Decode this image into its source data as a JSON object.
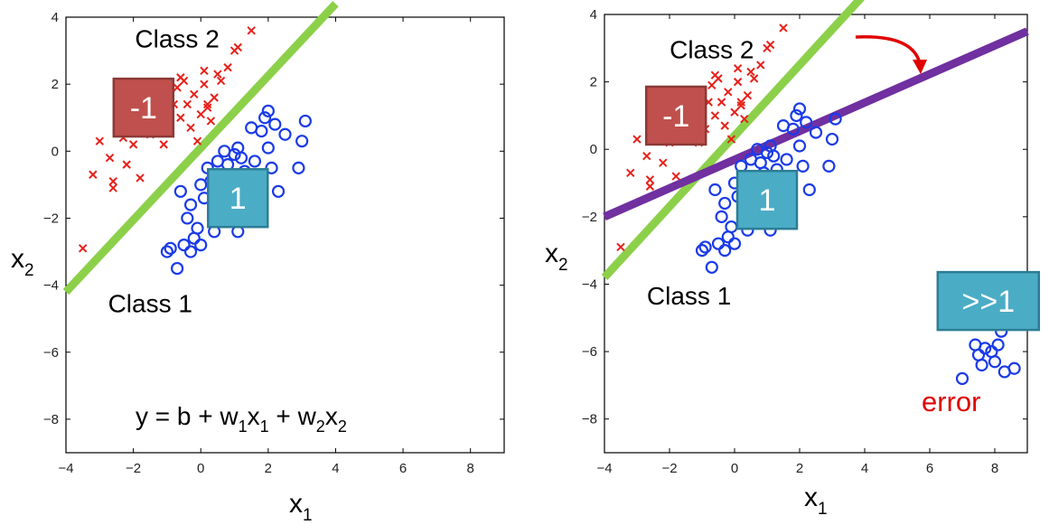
{
  "chart_data": [
    {
      "type": "scatter",
      "title": "",
      "xlabel": "x",
      "xlabel_sub": "1",
      "ylabel": "x",
      "ylabel_sub": "2",
      "xlim": [
        -4,
        9
      ],
      "ylim": [
        -9,
        4
      ],
      "xticks": [
        "−4",
        "−2",
        "0",
        "2",
        "4",
        "6",
        "8"
      ],
      "yticks": [
        "4",
        "2",
        "0",
        "−2",
        "−4",
        "−6",
        "−8"
      ],
      "grid": false,
      "series": [
        {
          "name": "Class 2",
          "marker": "x",
          "color": "#e8201a",
          "points": [
            [
              -3.5,
              -2.9
            ],
            [
              -3.2,
              -0.7
            ],
            [
              -3.0,
              0.3
            ],
            [
              -2.7,
              -0.2
            ],
            [
              -2.6,
              -0.9
            ],
            [
              -2.6,
              -1.1
            ],
            [
              -2.3,
              0.4
            ],
            [
              -2.2,
              -0.4
            ],
            [
              -2.0,
              0.2
            ],
            [
              -1.9,
              0.6
            ],
            [
              -1.8,
              -0.8
            ],
            [
              -1.6,
              1.1
            ],
            [
              -1.5,
              0.5
            ],
            [
              -1.3,
              1.6
            ],
            [
              -1.2,
              0.8
            ],
            [
              -1.1,
              0.2
            ],
            [
              -1.0,
              1.2
            ],
            [
              -0.9,
              0.6
            ],
            [
              -0.8,
              1.4
            ],
            [
              -0.7,
              1.9
            ],
            [
              -0.6,
              1.0
            ],
            [
              -0.5,
              2.1
            ],
            [
              -0.4,
              1.4
            ],
            [
              -0.3,
              0.7
            ],
            [
              -0.2,
              1.7
            ],
            [
              -0.1,
              0.3
            ],
            [
              0.0,
              1.1
            ],
            [
              0.1,
              2.0
            ],
            [
              0.1,
              2.4
            ],
            [
              0.2,
              1.4
            ],
            [
              0.3,
              0.9
            ],
            [
              0.4,
              1.6
            ],
            [
              0.5,
              2.3
            ],
            [
              0.6,
              2.1
            ],
            [
              0.8,
              2.5
            ],
            [
              1.0,
              3.0
            ],
            [
              1.1,
              3.1
            ],
            [
              1.5,
              3.6
            ],
            [
              -0.6,
              2.2
            ],
            [
              0.2,
              1.3
            ]
          ]
        },
        {
          "name": "Class 1",
          "marker": "o",
          "color": "#1a3be8",
          "points": [
            [
              -1.0,
              -3.0
            ],
            [
              -0.9,
              -2.9
            ],
            [
              -0.7,
              -3.5
            ],
            [
              -0.6,
              -1.2
            ],
            [
              -0.5,
              -2.8
            ],
            [
              -0.4,
              -2.0
            ],
            [
              -0.3,
              -1.6
            ],
            [
              -0.3,
              -3.0
            ],
            [
              -0.2,
              -2.6
            ],
            [
              -0.1,
              -2.3
            ],
            [
              0.0,
              -1.0
            ],
            [
              0.0,
              -2.8
            ],
            [
              0.1,
              -1.4
            ],
            [
              0.2,
              -0.5
            ],
            [
              0.3,
              -0.9
            ],
            [
              0.4,
              -2.4
            ],
            [
              0.5,
              -0.3
            ],
            [
              0.6,
              -0.8
            ],
            [
              0.6,
              -1.7
            ],
            [
              0.7,
              0.0
            ],
            [
              0.8,
              -0.4
            ],
            [
              0.9,
              -0.7
            ],
            [
              1.0,
              -0.1
            ],
            [
              1.0,
              -1.6
            ],
            [
              1.1,
              0.1
            ],
            [
              1.1,
              -2.4
            ],
            [
              1.2,
              -0.2
            ],
            [
              1.3,
              -0.6
            ],
            [
              1.4,
              -1.0
            ],
            [
              1.5,
              0.7
            ],
            [
              1.6,
              -0.3
            ],
            [
              1.7,
              -0.8
            ],
            [
              1.8,
              0.6
            ],
            [
              1.9,
              1.0
            ],
            [
              2.0,
              0.1
            ],
            [
              2.0,
              1.2
            ],
            [
              2.1,
              -0.5
            ],
            [
              2.2,
              0.8
            ],
            [
              2.3,
              -1.2
            ],
            [
              2.5,
              0.5
            ],
            [
              2.9,
              -0.5
            ],
            [
              3.0,
              0.3
            ],
            [
              3.1,
              0.9
            ]
          ]
        }
      ],
      "lines": [
        {
          "name": "boundary",
          "color": "#8cd04a",
          "from": [
            -4,
            -4.2
          ],
          "to": [
            4,
            4.4
          ]
        }
      ],
      "annotations": [
        {
          "text": "Class 2",
          "at": [
            -0.7,
            3.1
          ]
        },
        {
          "text": "Class 1",
          "at": [
            -1.5,
            -4.8
          ]
        }
      ],
      "boxes": [
        {
          "text": "-1",
          "color": "#c0504d",
          "border": "#8c3836",
          "at": [
            -1.7,
            1.3
          ]
        },
        {
          "text": "1",
          "color": "#4bacc6",
          "border": "#2c7d94",
          "at": [
            1.1,
            -1.4
          ]
        }
      ],
      "equation": {
        "y": "y = b + w",
        "s1": "1",
        "m1": "x",
        "s2": "1",
        "plus": " + w",
        "s3": "2",
        "m2": "x",
        "s4": "2"
      }
    },
    {
      "type": "scatter",
      "title": "",
      "xlabel": "x",
      "xlabel_sub": "1",
      "ylabel": "x",
      "ylabel_sub": "2",
      "xlim": [
        -4,
        9
      ],
      "ylim": [
        -9,
        4
      ],
      "xticks": [
        "−4",
        "−2",
        "0",
        "2",
        "4",
        "6",
        "8"
      ],
      "yticks": [
        "4",
        "2",
        "0",
        "−2",
        "−4",
        "−6",
        "−8"
      ],
      "grid": false,
      "series": [
        {
          "name": "Class 2",
          "marker": "x",
          "color": "#e8201a",
          "points": [
            [
              -3.5,
              -2.9
            ],
            [
              -3.2,
              -0.7
            ],
            [
              -3.0,
              0.3
            ],
            [
              -2.7,
              -0.2
            ],
            [
              -2.6,
              -0.9
            ],
            [
              -2.6,
              -1.1
            ],
            [
              -2.3,
              0.4
            ],
            [
              -2.2,
              -0.4
            ],
            [
              -2.0,
              0.2
            ],
            [
              -1.9,
              0.6
            ],
            [
              -1.8,
              -0.8
            ],
            [
              -1.6,
              1.1
            ],
            [
              -1.5,
              0.5
            ],
            [
              -1.3,
              1.6
            ],
            [
              -1.2,
              0.8
            ],
            [
              -1.1,
              0.2
            ],
            [
              -1.0,
              1.2
            ],
            [
              -0.9,
              0.6
            ],
            [
              -0.8,
              1.4
            ],
            [
              -0.7,
              1.9
            ],
            [
              -0.6,
              1.0
            ],
            [
              -0.5,
              2.1
            ],
            [
              -0.4,
              1.4
            ],
            [
              -0.3,
              0.7
            ],
            [
              -0.2,
              1.7
            ],
            [
              -0.1,
              0.3
            ],
            [
              0.0,
              1.1
            ],
            [
              0.1,
              2.0
            ],
            [
              0.1,
              2.4
            ],
            [
              0.2,
              1.4
            ],
            [
              0.3,
              0.9
            ],
            [
              0.4,
              1.6
            ],
            [
              0.5,
              2.3
            ],
            [
              0.6,
              2.1
            ],
            [
              0.8,
              2.5
            ],
            [
              1.0,
              3.0
            ],
            [
              1.1,
              3.1
            ],
            [
              1.5,
              3.6
            ],
            [
              -0.6,
              2.2
            ],
            [
              0.2,
              1.3
            ]
          ]
        },
        {
          "name": "Class 1",
          "marker": "o",
          "color": "#1a3be8",
          "points": [
            [
              -1.0,
              -3.0
            ],
            [
              -0.9,
              -2.9
            ],
            [
              -0.7,
              -3.5
            ],
            [
              -0.6,
              -1.2
            ],
            [
              -0.5,
              -2.8
            ],
            [
              -0.4,
              -2.0
            ],
            [
              -0.3,
              -1.6
            ],
            [
              -0.3,
              -3.0
            ],
            [
              -0.2,
              -2.6
            ],
            [
              -0.1,
              -2.3
            ],
            [
              0.0,
              -1.0
            ],
            [
              0.0,
              -2.8
            ],
            [
              0.1,
              -1.4
            ],
            [
              0.2,
              -0.5
            ],
            [
              0.3,
              -0.9
            ],
            [
              0.4,
              -2.4
            ],
            [
              0.5,
              -0.3
            ],
            [
              0.6,
              -0.8
            ],
            [
              0.6,
              -1.7
            ],
            [
              0.7,
              0.0
            ],
            [
              0.8,
              -0.4
            ],
            [
              0.9,
              -0.7
            ],
            [
              1.0,
              -0.1
            ],
            [
              1.0,
              -1.6
            ],
            [
              1.1,
              0.1
            ],
            [
              1.1,
              -2.4
            ],
            [
              1.2,
              -0.2
            ],
            [
              1.3,
              -0.6
            ],
            [
              1.4,
              -1.0
            ],
            [
              1.5,
              0.7
            ],
            [
              1.6,
              -0.3
            ],
            [
              1.7,
              -0.8
            ],
            [
              1.8,
              0.6
            ],
            [
              1.9,
              1.0
            ],
            [
              2.0,
              0.1
            ],
            [
              2.0,
              1.2
            ],
            [
              2.1,
              -0.5
            ],
            [
              2.2,
              0.8
            ],
            [
              2.3,
              -1.2
            ],
            [
              2.5,
              0.5
            ],
            [
              2.9,
              -0.5
            ],
            [
              3.0,
              0.3
            ],
            [
              3.1,
              0.9
            ],
            [
              7.0,
              -6.8
            ],
            [
              7.4,
              -5.8
            ],
            [
              7.5,
              -6.1
            ],
            [
              7.6,
              -6.4
            ],
            [
              7.7,
              -5.9
            ],
            [
              7.9,
              -6.0
            ],
            [
              8.0,
              -6.3
            ],
            [
              8.1,
              -5.8
            ],
            [
              8.2,
              -5.4
            ],
            [
              8.3,
              -6.6
            ],
            [
              8.6,
              -6.5
            ]
          ]
        }
      ],
      "lines": [
        {
          "name": "original boundary",
          "color": "#8cd04a",
          "from": [
            -4,
            -3.8
          ],
          "to": [
            3.9,
            4.5
          ]
        },
        {
          "name": "shifted boundary",
          "color": "#7030a0",
          "from": [
            -4,
            -2.0
          ],
          "to": [
            9,
            3.5
          ]
        }
      ],
      "annotations": [
        {
          "text": "Class 2",
          "at": [
            -0.7,
            2.7
          ]
        },
        {
          "text": "Class 1",
          "at": [
            -1.4,
            -4.6
          ]
        }
      ],
      "boxes": [
        {
          "text": "-1",
          "color": "#c0504d",
          "border": "#8c3836",
          "at": [
            -1.8,
            1.0
          ]
        },
        {
          "text": "1",
          "color": "#4bacc6",
          "border": "#2c7d94",
          "at": [
            1.0,
            -1.5
          ]
        },
        {
          "text": ">>1",
          "color": "#4bacc6",
          "border": "#2c7d94",
          "at": [
            7.8,
            -4.5
          ]
        }
      ],
      "error_label": "error"
    }
  ]
}
